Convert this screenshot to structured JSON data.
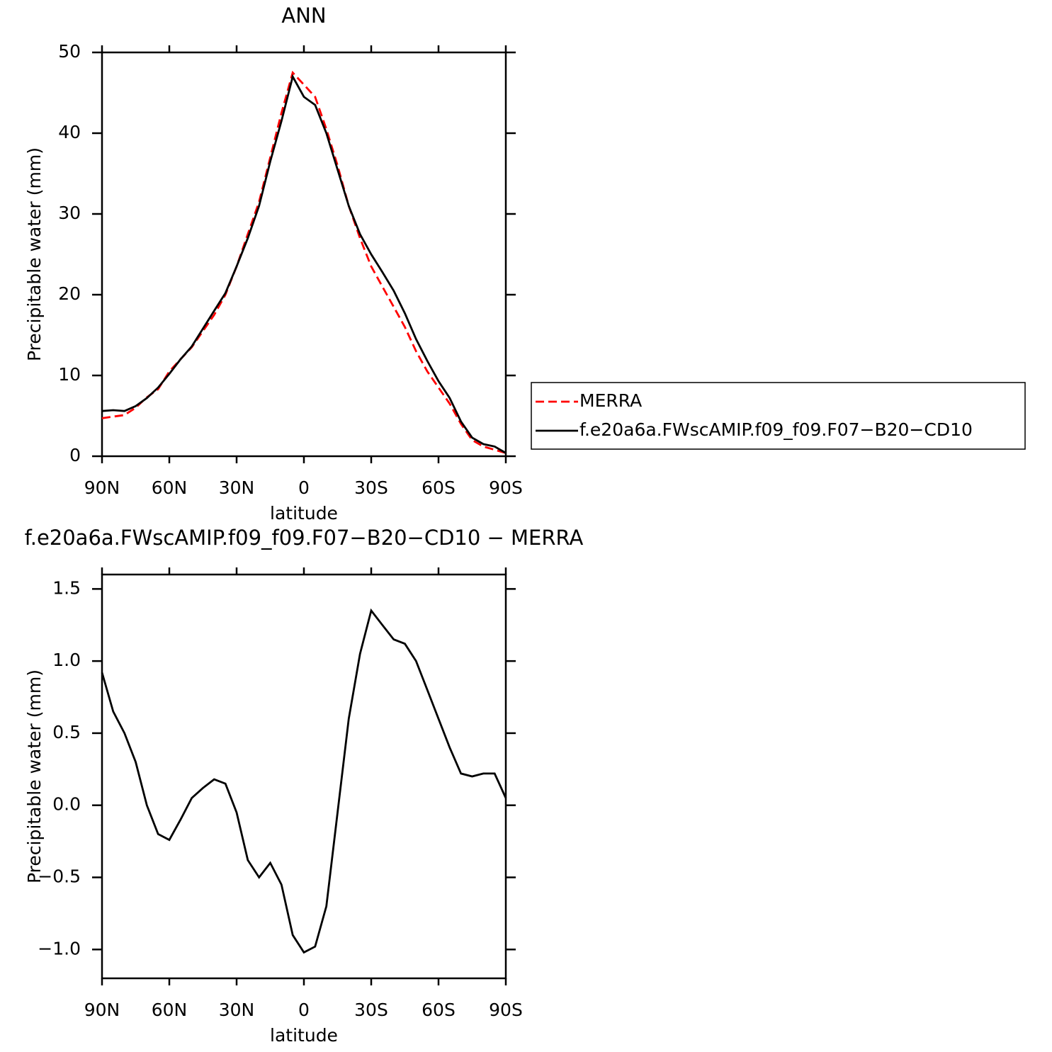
{
  "chart_data": [
    {
      "type": "line",
      "title": "ANN",
      "xlabel": "latitude",
      "ylabel": "Precipitable water (mm)",
      "x": [
        90,
        85,
        80,
        75,
        70,
        65,
        60,
        55,
        50,
        45,
        40,
        35,
        30,
        25,
        20,
        15,
        10,
        5,
        0,
        -5,
        -10,
        -15,
        -20,
        -25,
        -30,
        -35,
        -40,
        -45,
        -50,
        -55,
        -60,
        -65,
        -70,
        -75,
        -80,
        -85,
        -90
      ],
      "series": [
        {
          "name": "MERRA",
          "color": "#ff0000",
          "dash": true,
          "values": [
            4.7,
            4.9,
            5.1,
            6.0,
            7.3,
            8.3,
            10.5,
            12.0,
            13.5,
            15.5,
            17.5,
            20.0,
            23.5,
            27.5,
            31.5,
            37,
            42.5,
            47.5,
            46.0,
            44.5,
            40.5,
            36,
            31.0,
            27.0,
            23.5,
            21.0,
            18.5,
            16.0,
            13.0,
            10.5,
            8.5,
            6.5,
            4.0,
            2.0,
            1.2,
            0.8,
            0.4
          ]
        },
        {
          "name": "f.e20a6a.FWscAMIP.f09_f09.F07−B20−CD10",
          "color": "#000000",
          "dash": false,
          "values": [
            5.6,
            5.7,
            5.6,
            6.2,
            7.2,
            8.5,
            10.2,
            12.0,
            13.6,
            15.8,
            18.0,
            20.2,
            23.5,
            27.0,
            31.0,
            36.5,
            41.5,
            47.0,
            44.5,
            43.5,
            40.0,
            35.5,
            31.0,
            27.5,
            25.0,
            22.8,
            20.5,
            17.7,
            14.5,
            11.8,
            9.3,
            7.2,
            4.3,
            2.3,
            1.5,
            1.2,
            0.4
          ]
        }
      ],
      "xlim": [
        90,
        -90
      ],
      "xticks": [
        {
          "value": 90,
          "label": "90N"
        },
        {
          "value": 60,
          "label": "60N"
        },
        {
          "value": 30,
          "label": "30N"
        },
        0,
        {
          "value": -30,
          "label": "30S"
        },
        {
          "value": -60,
          "label": "60S"
        },
        {
          "value": -90,
          "label": "90S"
        }
      ],
      "ylim": [
        0,
        50
      ],
      "yticks": [
        0,
        10,
        20,
        30,
        40,
        50
      ],
      "legend": "right"
    },
    {
      "type": "line",
      "title": "f.e20a6a.FWscAMIP.f09_f09.F07−B20−CD10 − MERRA",
      "xlabel": "latitude",
      "ylabel": "Precipitable water (mm)",
      "x": [
        90,
        85,
        80,
        75,
        70,
        65,
        60,
        55,
        50,
        45,
        40,
        35,
        30,
        25,
        20,
        15,
        10,
        5,
        0,
        -5,
        -10,
        -15,
        -20,
        -25,
        -30,
        -35,
        -40,
        -45,
        -50,
        -55,
        -60,
        -65,
        -70,
        -75,
        -80,
        -85,
        -90
      ],
      "series": [
        {
          "color": "#000000",
          "dash": false,
          "values": [
            0.92,
            0.65,
            0.5,
            0.3,
            0.0,
            -0.2,
            -0.24,
            -0.1,
            0.05,
            0.12,
            0.18,
            0.15,
            -0.05,
            -0.38,
            -0.5,
            -0.4,
            -0.55,
            -0.9,
            -1.02,
            -0.98,
            -0.7,
            -0.05,
            0.6,
            1.05,
            1.35,
            1.25,
            1.15,
            1.12,
            1.0,
            0.8,
            0.6,
            0.4,
            0.22,
            0.2,
            0.22,
            0.22,
            0.05
          ]
        }
      ],
      "xlim": [
        90,
        -90
      ],
      "xticks": [
        {
          "value": 90,
          "label": "90N"
        },
        {
          "value": 60,
          "label": "60N"
        },
        {
          "value": 30,
          "label": "30N"
        },
        0,
        {
          "value": -30,
          "label": "30S"
        },
        {
          "value": -60,
          "label": "60S"
        },
        {
          "value": -90,
          "label": "90S"
        }
      ],
      "ylim": [
        -1.2,
        1.6
      ],
      "yticks": [
        {
          "value": -1.0,
          "label": "−1.0"
        },
        {
          "value": -0.5,
          "label": "−0.5"
        },
        {
          "value": 0,
          "label": "0.0"
        },
        {
          "value": 0.5,
          "label": "0.5"
        },
        {
          "value": 1.0,
          "label": "1.0"
        },
        {
          "value": 1.5,
          "label": "1.5"
        }
      ]
    }
  ]
}
